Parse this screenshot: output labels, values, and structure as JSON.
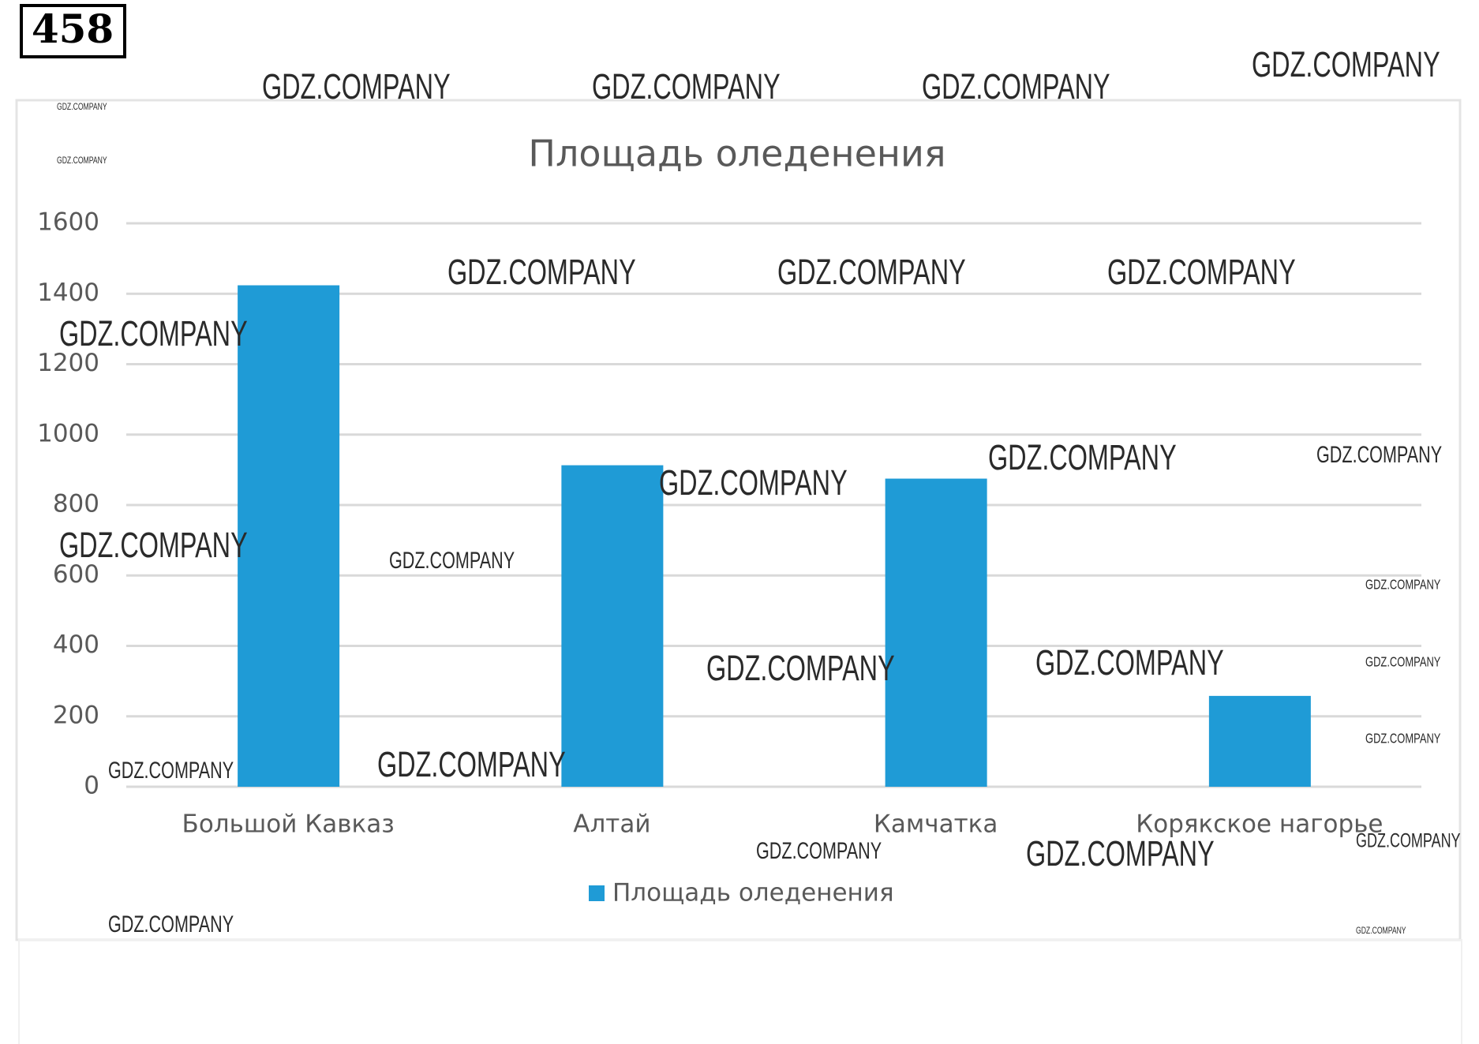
{
  "task_number": "458",
  "watermark": "GDZ.COMPANY",
  "chart_data": {
    "type": "bar",
    "title": "Площадь оледенения",
    "categories": [
      "Большой Кавказ",
      "Алтай",
      "Камчатка",
      "Корякское нагорье"
    ],
    "series": [
      {
        "name": "Площадь оледенения",
        "color": "#1f9bd6",
        "values": [
          1424,
          913,
          875,
          258
        ]
      }
    ],
    "ylim": [
      0,
      1600
    ],
    "yticks": [
      0,
      200,
      400,
      600,
      800,
      1000,
      1200,
      1400,
      1600
    ],
    "grid": true,
    "legend": "bottom"
  }
}
